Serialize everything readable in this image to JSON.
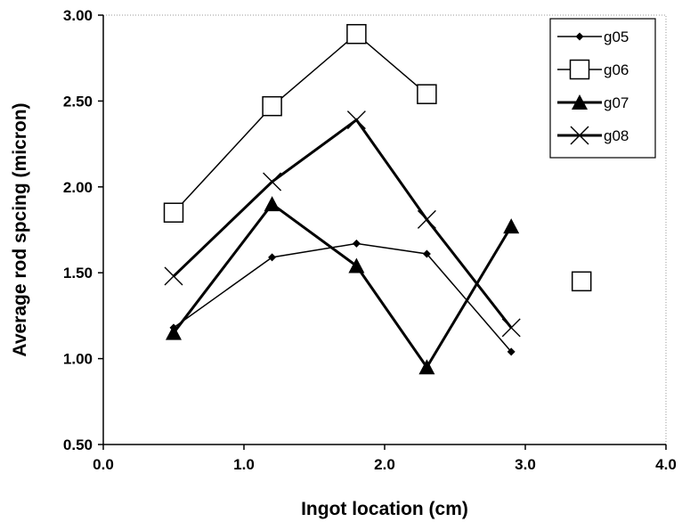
{
  "chart_data": {
    "type": "line",
    "title": "",
    "xlabel": "Ingot location (cm)",
    "ylabel": "Average rod spcing (micron)",
    "xlim": [
      0.0,
      4.0
    ],
    "ylim": [
      0.5,
      3.0
    ],
    "x_ticks": [
      "0.0",
      "1.0",
      "2.0",
      "3.0",
      "4.0"
    ],
    "y_ticks": [
      "0.50",
      "1.00",
      "1.50",
      "2.00",
      "2.50",
      "3.00"
    ],
    "grid": false,
    "legend_position": "top-right",
    "series": [
      {
        "name": "g05",
        "marker": "diamond",
        "line_weight": "thin",
        "x": [
          0.5,
          1.2,
          1.8,
          2.3,
          2.9
        ],
        "y": [
          1.18,
          1.59,
          1.67,
          1.61,
          1.04
        ]
      },
      {
        "name": "g06",
        "marker": "square",
        "line_weight": "thin",
        "x": [
          0.5,
          1.2,
          1.8,
          2.3,
          3.4
        ],
        "y": [
          1.85,
          2.47,
          2.89,
          2.54,
          1.45
        ],
        "breaks_after_index": 3
      },
      {
        "name": "g07",
        "marker": "triangle",
        "line_weight": "thick",
        "x": [
          0.5,
          1.2,
          1.8,
          2.3,
          2.9
        ],
        "y": [
          1.15,
          1.9,
          1.54,
          0.95,
          1.77
        ]
      },
      {
        "name": "g08",
        "marker": "x",
        "line_weight": "thick",
        "x": [
          0.5,
          1.2,
          1.8,
          2.3,
          2.9
        ],
        "y": [
          1.48,
          2.03,
          2.39,
          1.81,
          1.18
        ]
      }
    ]
  }
}
